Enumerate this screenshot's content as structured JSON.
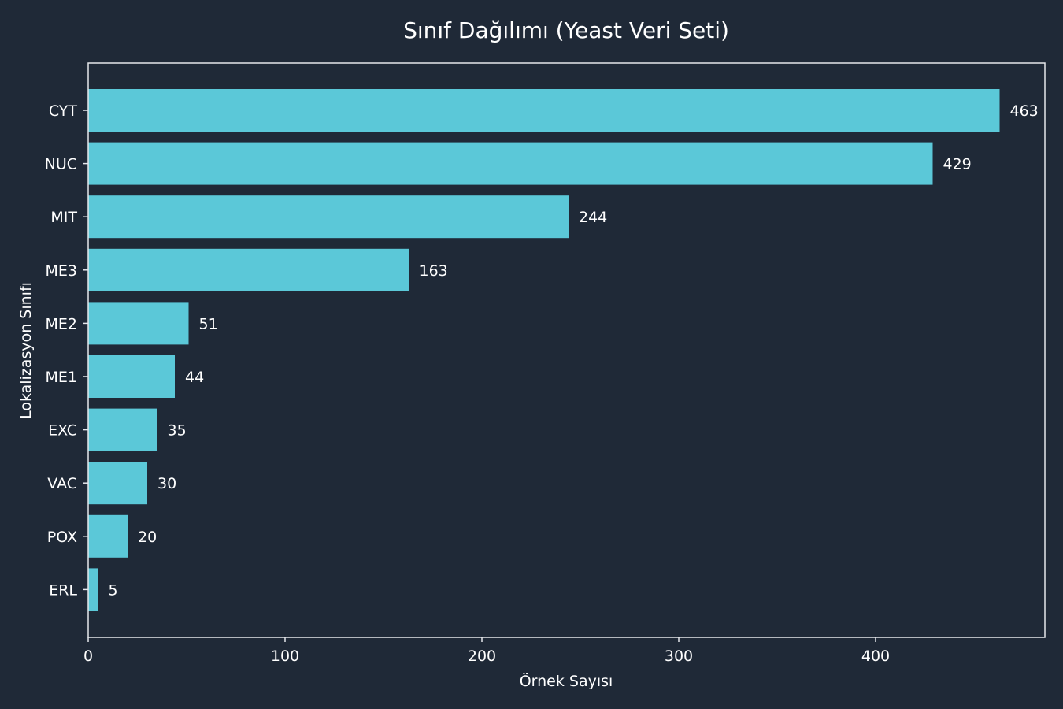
{
  "chart_data": {
    "type": "bar",
    "orientation": "horizontal",
    "title": "Sınıf Dağılımı (Yeast Veri Seti)",
    "xlabel": "Örnek Sayısı",
    "ylabel": "Lokalizasyon Sınıfı",
    "categories": [
      "CYT",
      "NUC",
      "MIT",
      "ME3",
      "ME2",
      "ME1",
      "EXC",
      "VAC",
      "POX",
      "ERL"
    ],
    "values": [
      463,
      429,
      244,
      163,
      51,
      44,
      35,
      30,
      20,
      5
    ],
    "xlim": [
      0,
      486
    ],
    "xticks": [
      0,
      100,
      200,
      300,
      400
    ],
    "grid": false,
    "legend": "none"
  },
  "colors": {
    "background": "#1f2937",
    "bar": "#5bc8d8",
    "text": "#ffffff",
    "frame": "#e5e7eb"
  }
}
